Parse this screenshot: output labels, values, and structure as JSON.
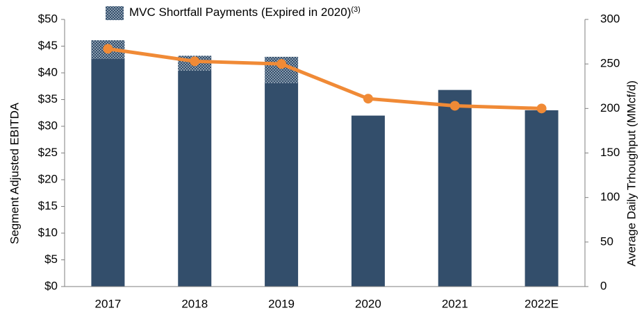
{
  "chart_data": {
    "type": "bar",
    "categories": [
      "2017",
      "2018",
      "2019",
      "2020",
      "2021",
      "2022E"
    ],
    "series": [
      {
        "color": "#334e6b",
        "values": [
          42.6,
          40.4,
          38.1,
          32.0,
          36.8,
          33.0
        ]
      },
      {
        "name": "MVC Shortfall Payments (Expired in 2020)",
        "name_note": "(3)",
        "color": "#334e6b",
        "pattern": "dotted",
        "values": [
          3.5,
          2.8,
          4.9,
          null,
          null,
          null
        ]
      },
      {
        "type": "line",
        "axis": "y2",
        "color": "#f08a36",
        "values": [
          267,
          253,
          250,
          211,
          203,
          200
        ]
      }
    ],
    "ylabel": "Segment Adjusted EBITDA",
    "y2label": "Average Daily Trhoughput (MMcf/d)",
    "ylim": [
      0,
      50
    ],
    "yticks": [
      {
        "value": 0,
        "label": "$0"
      },
      {
        "value": 5,
        "label": "$5"
      },
      {
        "value": 10,
        "label": "$10"
      },
      {
        "value": 15,
        "label": "$15"
      },
      {
        "value": 20,
        "label": "$20"
      },
      {
        "value": 25,
        "label": "$25"
      },
      {
        "value": 30,
        "label": "$30"
      },
      {
        "value": 35,
        "label": "$35"
      },
      {
        "value": 40,
        "label": "$40"
      },
      {
        "value": 45,
        "label": "$45"
      },
      {
        "value": 50,
        "label": "$50"
      }
    ],
    "y2lim": [
      0,
      300
    ],
    "y2ticks": [
      0,
      50,
      100,
      150,
      200,
      250,
      300
    ],
    "grid": false
  }
}
